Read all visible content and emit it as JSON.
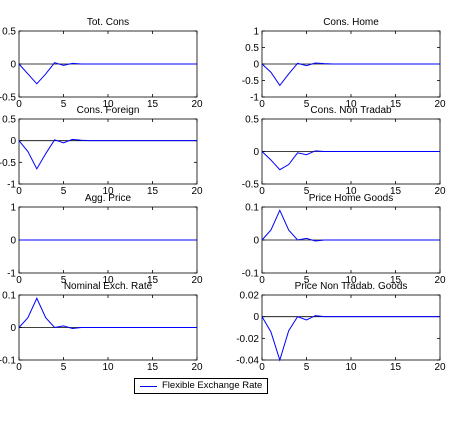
{
  "legend": {
    "label": "Flexible Exchange Rate",
    "color": "#0000ff"
  },
  "chart_data": [
    {
      "type": "line",
      "title": "Tot. Cons",
      "xlim": [
        0,
        20
      ],
      "ylim": [
        -0.5,
        0.5
      ],
      "xticks": [
        "0",
        "5",
        "10",
        "15",
        "20"
      ],
      "yticks": [
        "0.5",
        "0",
        "-0.5"
      ],
      "x": [
        0,
        1,
        2,
        3,
        4,
        5,
        6,
        7,
        8,
        9,
        10,
        11,
        12,
        13,
        14,
        15,
        16,
        17,
        18,
        19,
        20
      ],
      "series": [
        {
          "color": "#0000ff",
          "values": [
            0,
            -0.15,
            -0.3,
            -0.15,
            0.02,
            -0.02,
            0.01,
            0,
            0,
            0,
            0,
            0,
            0,
            0,
            0,
            0,
            0,
            0,
            0,
            0,
            0
          ]
        }
      ]
    },
    {
      "type": "line",
      "title": "Cons. Home",
      "xlim": [
        0,
        20
      ],
      "ylim": [
        -1,
        1
      ],
      "xticks": [
        "0",
        "5",
        "10",
        "15",
        "20"
      ],
      "yticks": [
        "1",
        "0.5",
        "0",
        "-0.5",
        "-1"
      ],
      "x": [
        0,
        1,
        2,
        3,
        4,
        5,
        6,
        7,
        8,
        9,
        10,
        11,
        12,
        13,
        14,
        15,
        16,
        17,
        18,
        19,
        20
      ],
      "series": [
        {
          "color": "#0000ff",
          "values": [
            0,
            -0.25,
            -0.65,
            -0.3,
            0.02,
            -0.05,
            0.03,
            0.01,
            0,
            0,
            0,
            0,
            0,
            0,
            0,
            0,
            0,
            0,
            0,
            0,
            0
          ]
        }
      ]
    },
    {
      "type": "line",
      "title": "Cons. Foreign",
      "xlim": [
        0,
        20
      ],
      "ylim": [
        -1,
        0.5
      ],
      "xticks": [
        "0",
        "5",
        "10",
        "15",
        "20"
      ],
      "yticks": [
        "0.5",
        "0",
        "-0.5",
        "-1"
      ],
      "x": [
        0,
        1,
        2,
        3,
        4,
        5,
        6,
        7,
        8,
        9,
        10,
        11,
        12,
        13,
        14,
        15,
        16,
        17,
        18,
        19,
        20
      ],
      "series": [
        {
          "color": "#0000ff",
          "values": [
            0,
            -0.25,
            -0.65,
            -0.3,
            0.02,
            -0.05,
            0.03,
            0.01,
            0,
            0,
            0,
            0,
            0,
            0,
            0,
            0,
            0,
            0,
            0,
            0,
            0
          ]
        }
      ]
    },
    {
      "type": "line",
      "title": "Cons. Non Tradab",
      "xlim": [
        0,
        20
      ],
      "ylim": [
        -0.5,
        0.5
      ],
      "xticks": [
        "0",
        "5",
        "10",
        "15",
        "20"
      ],
      "yticks": [
        "0.5",
        "0",
        "-0.5"
      ],
      "x": [
        0,
        1,
        2,
        3,
        4,
        5,
        6,
        7,
        8,
        9,
        10,
        11,
        12,
        13,
        14,
        15,
        16,
        17,
        18,
        19,
        20
      ],
      "series": [
        {
          "color": "#0000ff",
          "values": [
            0,
            -0.13,
            -0.28,
            -0.2,
            -0.02,
            -0.05,
            0.01,
            0,
            0,
            0,
            0,
            0,
            0,
            0,
            0,
            0,
            0,
            0,
            0,
            0,
            0
          ]
        }
      ]
    },
    {
      "type": "line",
      "title": "Agg. Price",
      "xlim": [
        0,
        20
      ],
      "ylim": [
        -1,
        1
      ],
      "xticks": [
        "0",
        "5",
        "10",
        "15",
        "20"
      ],
      "yticks": [
        "1",
        "0",
        "-1"
      ],
      "x": [
        0,
        1,
        2,
        3,
        4,
        5,
        6,
        7,
        8,
        9,
        10,
        11,
        12,
        13,
        14,
        15,
        16,
        17,
        18,
        19,
        20
      ],
      "series": [
        {
          "color": "#0000ff",
          "values": [
            0,
            0,
            0,
            0,
            0,
            0,
            0,
            0,
            0,
            0,
            0,
            0,
            0,
            0,
            0,
            0,
            0,
            0,
            0,
            0,
            0
          ]
        }
      ]
    },
    {
      "type": "line",
      "title": "Price Home Goods",
      "xlim": [
        0,
        20
      ],
      "ylim": [
        -0.1,
        0.1
      ],
      "xticks": [
        "0",
        "5",
        "10",
        "15",
        "20"
      ],
      "yticks": [
        "0.1",
        "0",
        "-0.1"
      ],
      "x": [
        0,
        1,
        2,
        3,
        4,
        5,
        6,
        7,
        8,
        9,
        10,
        11,
        12,
        13,
        14,
        15,
        16,
        17,
        18,
        19,
        20
      ],
      "series": [
        {
          "color": "#0000ff",
          "values": [
            0,
            0.03,
            0.09,
            0.03,
            0,
            0.005,
            -0.003,
            0,
            0,
            0,
            0,
            0,
            0,
            0,
            0,
            0,
            0,
            0,
            0,
            0,
            0
          ]
        }
      ]
    },
    {
      "type": "line",
      "title": "Nominal Exch. Rate",
      "xlim": [
        0,
        20
      ],
      "ylim": [
        -0.1,
        0.1
      ],
      "xticks": [
        "0",
        "5",
        "10",
        "15",
        "20"
      ],
      "yticks": [
        "0.1",
        "0",
        "-0.1"
      ],
      "x": [
        0,
        1,
        2,
        3,
        4,
        5,
        6,
        7,
        8,
        9,
        10,
        11,
        12,
        13,
        14,
        15,
        16,
        17,
        18,
        19,
        20
      ],
      "series": [
        {
          "color": "#0000ff",
          "values": [
            0,
            0.03,
            0.09,
            0.03,
            0,
            0.005,
            -0.003,
            0,
            0,
            0,
            0,
            0,
            0,
            0,
            0,
            0,
            0,
            0,
            0,
            0,
            0
          ]
        }
      ]
    },
    {
      "type": "line",
      "title": "Price Non Tradab. Goods",
      "xlim": [
        0,
        20
      ],
      "ylim": [
        -0.04,
        0.02
      ],
      "xticks": [
        "0",
        "5",
        "10",
        "15",
        "20"
      ],
      "yticks": [
        "0.02",
        "0",
        "-0.02",
        "-0.04"
      ],
      "x": [
        0,
        1,
        2,
        3,
        4,
        5,
        6,
        7,
        8,
        9,
        10,
        11,
        12,
        13,
        14,
        15,
        16,
        17,
        18,
        19,
        20
      ],
      "series": [
        {
          "color": "#0000ff",
          "values": [
            0,
            -0.014,
            -0.04,
            -0.013,
            0,
            -0.003,
            0.001,
            0,
            0,
            0,
            0,
            0,
            0,
            0,
            0,
            0,
            0,
            0,
            0,
            0,
            0
          ]
        }
      ]
    }
  ]
}
